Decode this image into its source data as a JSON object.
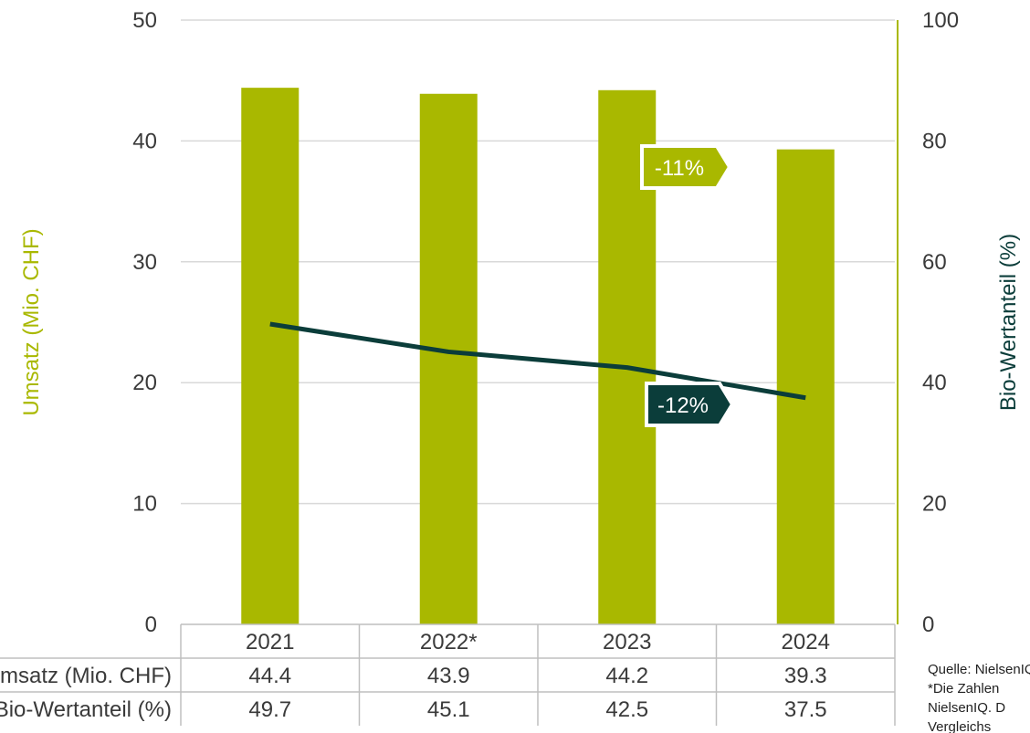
{
  "colors": {
    "bar": "#a9b800",
    "line": "#0b3d3a",
    "grid": "#d9d9d9",
    "table_line": "#bfbfbf",
    "text": "#3a3a3a"
  },
  "chart_data": {
    "type": "bar",
    "categories": [
      "2021",
      "2022*",
      "2023",
      "2024"
    ],
    "series": [
      {
        "name": "Umsatz (Mio. CHF)",
        "type": "bar",
        "axis": "left",
        "values": [
          44.4,
          43.9,
          44.2,
          39.3
        ]
      },
      {
        "name": "Bio-Wertanteil (%)",
        "type": "line",
        "axis": "right",
        "values": [
          49.7,
          45.1,
          42.5,
          37.5
        ]
      }
    ],
    "ylabel": "Umsatz (Mio. CHF)",
    "y2label": "Bio-Wertanteil (%)",
    "ylim": [
      0,
      50
    ],
    "y2lim": [
      0,
      100
    ],
    "yticks": [
      0,
      10,
      20,
      30,
      40,
      50
    ],
    "y2ticks": [
      0,
      20,
      40,
      60,
      80,
      100
    ],
    "grid": true,
    "annotations": [
      {
        "text": "-11%",
        "series": "Umsatz (Mio. CHF)"
      },
      {
        "text": "-12%",
        "series": "Bio-Wertanteil (%)"
      }
    ],
    "table": {
      "row_labels": [
        "Umsatz (Mio. CHF)",
        "Bio-Wertanteil (%)"
      ],
      "rows": [
        [
          "44.4",
          "43.9",
          "44.2",
          "39.3"
        ],
        [
          "49.7",
          "45.1",
          "42.5",
          "37.5"
        ]
      ]
    }
  },
  "source_lines": [
    "Quelle: NielsenIQ",
    "*Die Zahlen",
    "NielsenIQ. D",
    "Vergleichs"
  ]
}
